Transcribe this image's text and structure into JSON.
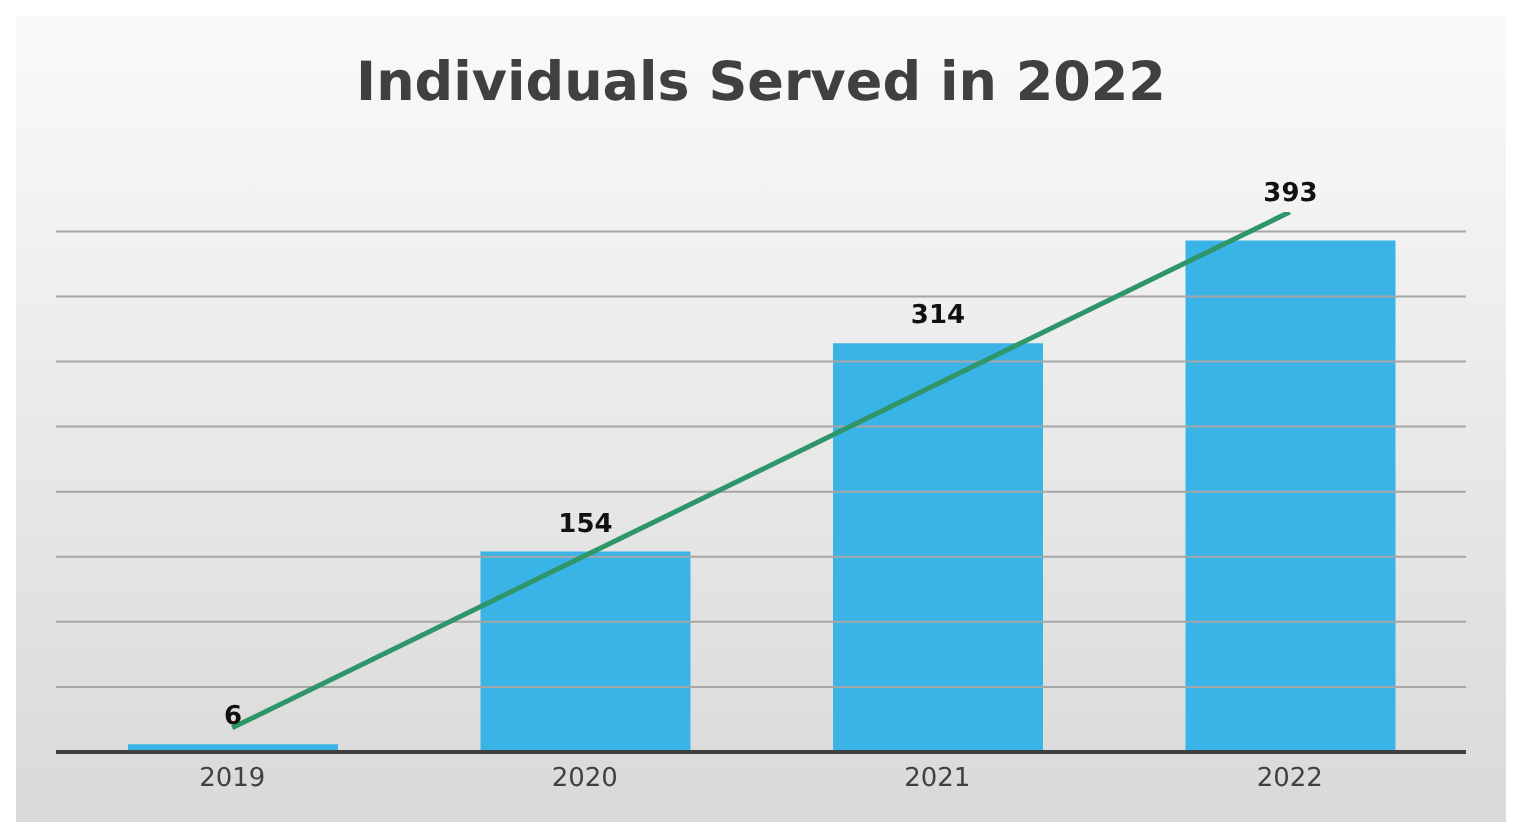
{
  "chart_data": {
    "type": "bar",
    "title": "Individuals Served in 2022",
    "categories": [
      "2019",
      "2020",
      "2021",
      "2022"
    ],
    "series": [
      {
        "color": "#3ab3e6",
        "values": [
          6,
          154,
          314,
          393
        ],
        "value_labels": [
          "6",
          "154",
          "314",
          "393"
        ]
      },
      {
        "type": "line",
        "color": "#2e9668",
        "values": [
          18.6,
          150.7,
          282.8,
          414.9
        ]
      }
    ],
    "yticks": [
      {
        "value": 0,
        "label": null
      },
      {
        "value": 50,
        "label": null
      },
      {
        "value": 100,
        "label": null
      },
      {
        "value": 150,
        "label": null
      },
      {
        "value": 200,
        "label": null
      },
      {
        "value": 250,
        "label": null
      },
      {
        "value": 300,
        "label": null
      },
      {
        "value": 350,
        "label": null
      },
      {
        "value": 400,
        "label": null
      }
    ],
    "grid": "y",
    "tick_labels": "x",
    "marker": "none",
    "legend": false
  }
}
